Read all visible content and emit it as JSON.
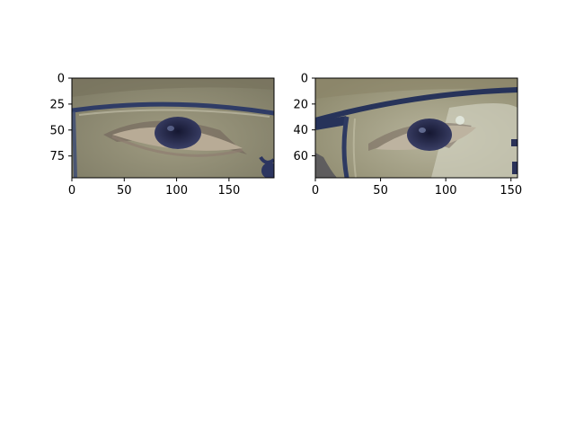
{
  "panels": [
    {
      "name": "left-eye-image",
      "image_size": {
        "width": 193,
        "height": 96
      },
      "x_ticks": [
        "0",
        "50",
        "100",
        "150"
      ],
      "x_tick_values": [
        0,
        50,
        100,
        150
      ],
      "y_ticks": [
        "0",
        "25",
        "50",
        "75"
      ],
      "y_tick_values": [
        0,
        25,
        50,
        75
      ],
      "colors": {
        "skin": "#8d8c70",
        "skin_light": "#a7a58a",
        "frame": "#2f3c66",
        "iris": "#1e2142",
        "shadow": "#6d5f58"
      }
    },
    {
      "name": "right-eye-image",
      "image_size": {
        "width": 155,
        "height": 77
      },
      "x_ticks": [
        "0",
        "50",
        "100",
        "150"
      ],
      "x_tick_values": [
        0,
        50,
        100,
        150
      ],
      "y_ticks": [
        "0",
        "20",
        "40",
        "60"
      ],
      "y_tick_values": [
        0,
        20,
        40,
        60
      ],
      "colors": {
        "skin": "#9c9878",
        "skin_light": "#c9c9b4",
        "frame": "#27335a",
        "iris": "#1d2145",
        "shadow": "#76685e"
      }
    }
  ]
}
